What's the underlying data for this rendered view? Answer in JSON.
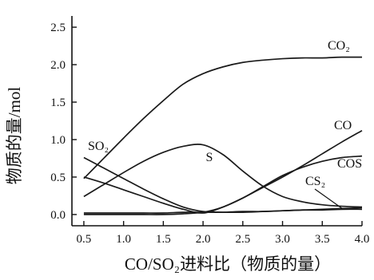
{
  "chart_data": {
    "type": "line",
    "xlabel": "CO/SO₂进料比（物质的量）",
    "ylabel": "物质的量/mol",
    "xlim": [
      0.35,
      4.0
    ],
    "ylim": [
      -0.15,
      2.65
    ],
    "x_ticks": [
      0.5,
      1.0,
      1.5,
      2.0,
      2.5,
      3.0,
      3.5,
      4.0
    ],
    "x_tick_labels": [
      "0.5",
      "1.0",
      "1.5",
      "2.0",
      "2.5",
      "3.0",
      "3.5",
      "4.0"
    ],
    "y_ticks": [
      0.0,
      0.5,
      1.0,
      1.5,
      2.0,
      2.5
    ],
    "y_tick_labels": [
      "0.0",
      "0.5",
      "1.0",
      "1.5",
      "2.0",
      "2.5"
    ],
    "grid": false,
    "legend": "none",
    "series": [
      {
        "name": "CO₂",
        "x": [
          0.5,
          0.75,
          1.0,
          1.25,
          1.5,
          1.75,
          2.0,
          2.25,
          2.5,
          2.75,
          3.0,
          3.25,
          3.5,
          3.75,
          4.0
        ],
        "y": [
          0.48,
          0.75,
          1.02,
          1.28,
          1.52,
          1.74,
          1.88,
          1.97,
          2.03,
          2.06,
          2.08,
          2.09,
          2.09,
          2.1,
          2.1
        ]
      },
      {
        "name": "S",
        "x": [
          0.5,
          0.75,
          1.0,
          1.25,
          1.5,
          1.75,
          2.0,
          2.25,
          2.5,
          2.75,
          3.0,
          3.25,
          3.5,
          3.75,
          4.0
        ],
        "y": [
          0.24,
          0.4,
          0.56,
          0.71,
          0.83,
          0.91,
          0.93,
          0.8,
          0.58,
          0.38,
          0.24,
          0.17,
          0.13,
          0.11,
          0.1
        ]
      },
      {
        "name": "SO₂",
        "x": [
          0.5,
          0.75,
          1.0,
          1.25,
          1.5,
          1.75,
          2.0,
          2.25,
          2.5,
          2.75,
          3.0,
          3.25,
          3.5,
          3.75,
          4.0
        ],
        "y": [
          0.76,
          0.62,
          0.48,
          0.34,
          0.21,
          0.1,
          0.04,
          0.03,
          0.03,
          0.04,
          0.05,
          0.06,
          0.07,
          0.08,
          0.09
        ]
      },
      {
        "name": "CO",
        "x": [
          0.5,
          0.75,
          1.0,
          1.25,
          1.5,
          1.75,
          2.0,
          2.25,
          2.5,
          2.75,
          3.0,
          3.25,
          3.5,
          3.75,
          4.0
        ],
        "y": [
          0.5,
          0.42,
          0.33,
          0.24,
          0.15,
          0.07,
          0.02,
          0.1,
          0.22,
          0.36,
          0.5,
          0.65,
          0.81,
          0.97,
          1.12
        ]
      },
      {
        "name": "COS",
        "x": [
          0.5,
          0.75,
          1.0,
          1.25,
          1.5,
          1.75,
          2.0,
          2.25,
          2.5,
          2.75,
          3.0,
          3.25,
          3.5,
          3.75,
          4.0
        ],
        "y": [
          0.0,
          0.0,
          0.0,
          0.0,
          0.0,
          0.01,
          0.03,
          0.1,
          0.22,
          0.37,
          0.52,
          0.63,
          0.71,
          0.76,
          0.78
        ]
      },
      {
        "name": "CS₂",
        "x": [
          0.5,
          0.75,
          1.0,
          1.25,
          1.5,
          1.75,
          2.0,
          2.25,
          2.5,
          2.75,
          3.0,
          3.25,
          3.5,
          3.75,
          4.0
        ],
        "y": [
          0.02,
          0.02,
          0.02,
          0.02,
          0.02,
          0.03,
          0.03,
          0.03,
          0.04,
          0.04,
          0.05,
          0.06,
          0.06,
          0.07,
          0.07
        ]
      }
    ]
  }
}
